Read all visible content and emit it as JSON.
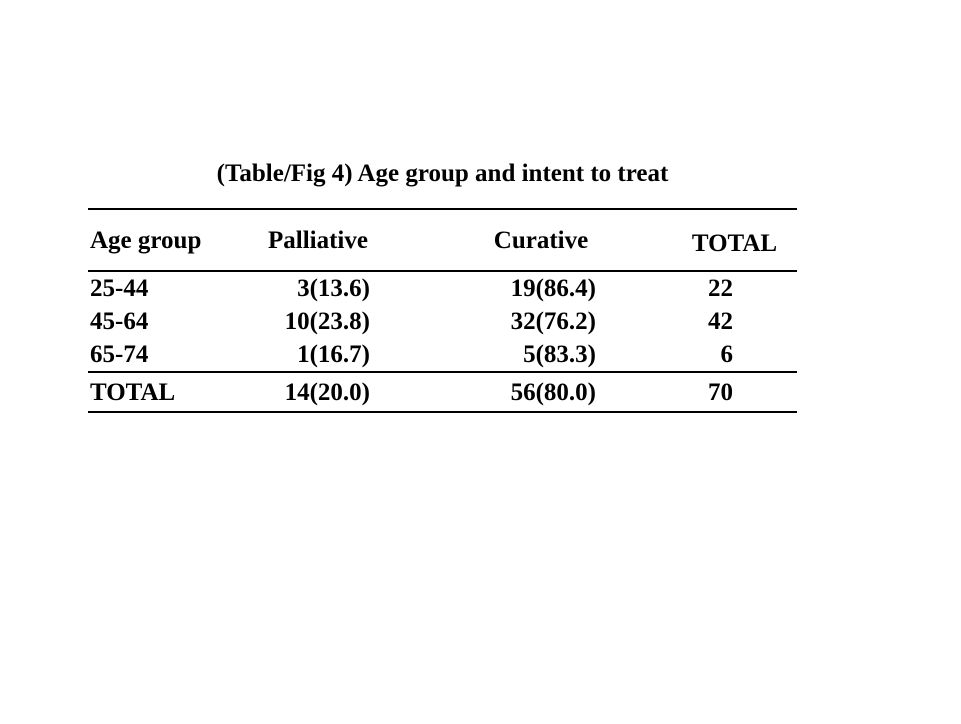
{
  "page": {
    "background_color": "#ffffff",
    "text_color": "#000000",
    "rule_color": "#000000"
  },
  "chart_data": {
    "type": "table",
    "title": "(Table/Fig 4) Age group and intent to treat",
    "columns": [
      "Age group",
      "Palliative",
      "Curative",
      "TOTAL"
    ],
    "rows": [
      [
        "25-44",
        "3(13.6)",
        "19(86.4)",
        "22"
      ],
      [
        "45-64",
        "10(23.8)",
        "32(76.2)",
        "42"
      ],
      [
        "65-74",
        "1(16.7)",
        "5(83.3)",
        "6"
      ],
      [
        "TOTAL",
        "14(20.0)",
        "56(80.0)",
        "70"
      ]
    ],
    "categories": [
      "25-44",
      "45-64",
      "65-74"
    ],
    "series": [
      {
        "name": "Palliative",
        "counts": [
          3,
          10,
          1
        ],
        "percents": [
          13.6,
          23.8,
          16.7
        ],
        "total_count": 14,
        "total_percent": 20.0
      },
      {
        "name": "Curative",
        "counts": [
          19,
          32,
          5
        ],
        "percents": [
          86.4,
          76.2,
          83.3
        ],
        "total_count": 56,
        "total_percent": 80.0
      }
    ],
    "row_totals": [
      22,
      42,
      6
    ],
    "grand_total": 70,
    "layout": {
      "value_format": "count(percent)",
      "header_align": [
        "left",
        "center",
        "center",
        "center"
      ],
      "body_align": [
        "left",
        "right",
        "right",
        "right"
      ],
      "grid": "horizontal-rules-only",
      "rules": 4
    }
  }
}
